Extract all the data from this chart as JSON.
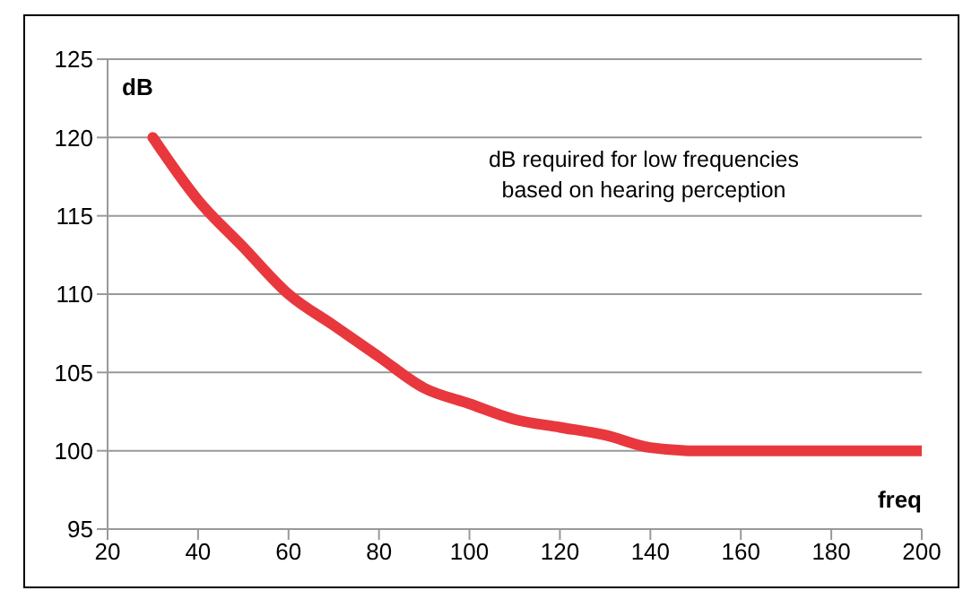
{
  "chart_data": {
    "type": "line",
    "xlabel": "freq",
    "ylabel": "dB",
    "annotations": [
      "dB required for low frequencies\nbased on hearing perception"
    ],
    "x": [
      30,
      40,
      50,
      60,
      70,
      80,
      90,
      100,
      110,
      120,
      130,
      140,
      150,
      160,
      180,
      200
    ],
    "series": [
      {
        "color": "#e8383d",
        "values": [
          120,
          116,
          113,
          110,
          108,
          106,
          104,
          103,
          102,
          101.5,
          101,
          100.2,
          100,
          100,
          100,
          100
        ]
      }
    ],
    "xlim": [
      20,
      200
    ],
    "xticks": [
      20,
      40,
      60,
      80,
      100,
      120,
      140,
      160,
      180,
      200
    ],
    "ylim": [
      95,
      125
    ],
    "yticks": [
      95,
      100,
      105,
      110,
      115,
      120,
      125
    ],
    "grid": "y",
    "legend": false,
    "marker": "none",
    "line_style": "solid"
  }
}
